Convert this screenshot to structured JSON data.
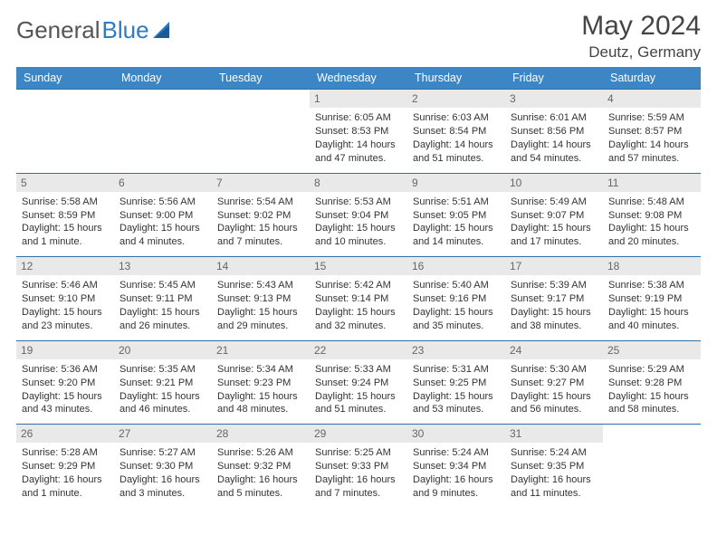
{
  "logo": {
    "part1": "General",
    "part2": "Blue"
  },
  "title": {
    "month": "May 2024",
    "location": "Deutz, Germany"
  },
  "colors": {
    "header_bg": "#3d86c6",
    "header_fg": "#ffffff",
    "cell_border": "#2f6fa8",
    "daynum_bg": "#e9e9e9",
    "daynum_fg": "#666666",
    "text": "#333333",
    "logo_gray": "#555555",
    "logo_blue": "#2f7bbf"
  },
  "weekdays": [
    "Sunday",
    "Monday",
    "Tuesday",
    "Wednesday",
    "Thursday",
    "Friday",
    "Saturday"
  ],
  "cells": [
    {
      "day": "",
      "l1": "",
      "l2": "",
      "l3": "",
      "l4": ""
    },
    {
      "day": "",
      "l1": "",
      "l2": "",
      "l3": "",
      "l4": ""
    },
    {
      "day": "",
      "l1": "",
      "l2": "",
      "l3": "",
      "l4": ""
    },
    {
      "day": "1",
      "l1": "Sunrise: 6:05 AM",
      "l2": "Sunset: 8:53 PM",
      "l3": "Daylight: 14 hours",
      "l4": "and 47 minutes."
    },
    {
      "day": "2",
      "l1": "Sunrise: 6:03 AM",
      "l2": "Sunset: 8:54 PM",
      "l3": "Daylight: 14 hours",
      "l4": "and 51 minutes."
    },
    {
      "day": "3",
      "l1": "Sunrise: 6:01 AM",
      "l2": "Sunset: 8:56 PM",
      "l3": "Daylight: 14 hours",
      "l4": "and 54 minutes."
    },
    {
      "day": "4",
      "l1": "Sunrise: 5:59 AM",
      "l2": "Sunset: 8:57 PM",
      "l3": "Daylight: 14 hours",
      "l4": "and 57 minutes."
    },
    {
      "day": "5",
      "l1": "Sunrise: 5:58 AM",
      "l2": "Sunset: 8:59 PM",
      "l3": "Daylight: 15 hours",
      "l4": "and 1 minute."
    },
    {
      "day": "6",
      "l1": "Sunrise: 5:56 AM",
      "l2": "Sunset: 9:00 PM",
      "l3": "Daylight: 15 hours",
      "l4": "and 4 minutes."
    },
    {
      "day": "7",
      "l1": "Sunrise: 5:54 AM",
      "l2": "Sunset: 9:02 PM",
      "l3": "Daylight: 15 hours",
      "l4": "and 7 minutes."
    },
    {
      "day": "8",
      "l1": "Sunrise: 5:53 AM",
      "l2": "Sunset: 9:04 PM",
      "l3": "Daylight: 15 hours",
      "l4": "and 10 minutes."
    },
    {
      "day": "9",
      "l1": "Sunrise: 5:51 AM",
      "l2": "Sunset: 9:05 PM",
      "l3": "Daylight: 15 hours",
      "l4": "and 14 minutes."
    },
    {
      "day": "10",
      "l1": "Sunrise: 5:49 AM",
      "l2": "Sunset: 9:07 PM",
      "l3": "Daylight: 15 hours",
      "l4": "and 17 minutes."
    },
    {
      "day": "11",
      "l1": "Sunrise: 5:48 AM",
      "l2": "Sunset: 9:08 PM",
      "l3": "Daylight: 15 hours",
      "l4": "and 20 minutes."
    },
    {
      "day": "12",
      "l1": "Sunrise: 5:46 AM",
      "l2": "Sunset: 9:10 PM",
      "l3": "Daylight: 15 hours",
      "l4": "and 23 minutes."
    },
    {
      "day": "13",
      "l1": "Sunrise: 5:45 AM",
      "l2": "Sunset: 9:11 PM",
      "l3": "Daylight: 15 hours",
      "l4": "and 26 minutes."
    },
    {
      "day": "14",
      "l1": "Sunrise: 5:43 AM",
      "l2": "Sunset: 9:13 PM",
      "l3": "Daylight: 15 hours",
      "l4": "and 29 minutes."
    },
    {
      "day": "15",
      "l1": "Sunrise: 5:42 AM",
      "l2": "Sunset: 9:14 PM",
      "l3": "Daylight: 15 hours",
      "l4": "and 32 minutes."
    },
    {
      "day": "16",
      "l1": "Sunrise: 5:40 AM",
      "l2": "Sunset: 9:16 PM",
      "l3": "Daylight: 15 hours",
      "l4": "and 35 minutes."
    },
    {
      "day": "17",
      "l1": "Sunrise: 5:39 AM",
      "l2": "Sunset: 9:17 PM",
      "l3": "Daylight: 15 hours",
      "l4": "and 38 minutes."
    },
    {
      "day": "18",
      "l1": "Sunrise: 5:38 AM",
      "l2": "Sunset: 9:19 PM",
      "l3": "Daylight: 15 hours",
      "l4": "and 40 minutes."
    },
    {
      "day": "19",
      "l1": "Sunrise: 5:36 AM",
      "l2": "Sunset: 9:20 PM",
      "l3": "Daylight: 15 hours",
      "l4": "and 43 minutes."
    },
    {
      "day": "20",
      "l1": "Sunrise: 5:35 AM",
      "l2": "Sunset: 9:21 PM",
      "l3": "Daylight: 15 hours",
      "l4": "and 46 minutes."
    },
    {
      "day": "21",
      "l1": "Sunrise: 5:34 AM",
      "l2": "Sunset: 9:23 PM",
      "l3": "Daylight: 15 hours",
      "l4": "and 48 minutes."
    },
    {
      "day": "22",
      "l1": "Sunrise: 5:33 AM",
      "l2": "Sunset: 9:24 PM",
      "l3": "Daylight: 15 hours",
      "l4": "and 51 minutes."
    },
    {
      "day": "23",
      "l1": "Sunrise: 5:31 AM",
      "l2": "Sunset: 9:25 PM",
      "l3": "Daylight: 15 hours",
      "l4": "and 53 minutes."
    },
    {
      "day": "24",
      "l1": "Sunrise: 5:30 AM",
      "l2": "Sunset: 9:27 PM",
      "l3": "Daylight: 15 hours",
      "l4": "and 56 minutes."
    },
    {
      "day": "25",
      "l1": "Sunrise: 5:29 AM",
      "l2": "Sunset: 9:28 PM",
      "l3": "Daylight: 15 hours",
      "l4": "and 58 minutes."
    },
    {
      "day": "26",
      "l1": "Sunrise: 5:28 AM",
      "l2": "Sunset: 9:29 PM",
      "l3": "Daylight: 16 hours",
      "l4": "and 1 minute."
    },
    {
      "day": "27",
      "l1": "Sunrise: 5:27 AM",
      "l2": "Sunset: 9:30 PM",
      "l3": "Daylight: 16 hours",
      "l4": "and 3 minutes."
    },
    {
      "day": "28",
      "l1": "Sunrise: 5:26 AM",
      "l2": "Sunset: 9:32 PM",
      "l3": "Daylight: 16 hours",
      "l4": "and 5 minutes."
    },
    {
      "day": "29",
      "l1": "Sunrise: 5:25 AM",
      "l2": "Sunset: 9:33 PM",
      "l3": "Daylight: 16 hours",
      "l4": "and 7 minutes."
    },
    {
      "day": "30",
      "l1": "Sunrise: 5:24 AM",
      "l2": "Sunset: 9:34 PM",
      "l3": "Daylight: 16 hours",
      "l4": "and 9 minutes."
    },
    {
      "day": "31",
      "l1": "Sunrise: 5:24 AM",
      "l2": "Sunset: 9:35 PM",
      "l3": "Daylight: 16 hours",
      "l4": "and 11 minutes."
    },
    {
      "day": "",
      "l1": "",
      "l2": "",
      "l3": "",
      "l4": ""
    }
  ]
}
